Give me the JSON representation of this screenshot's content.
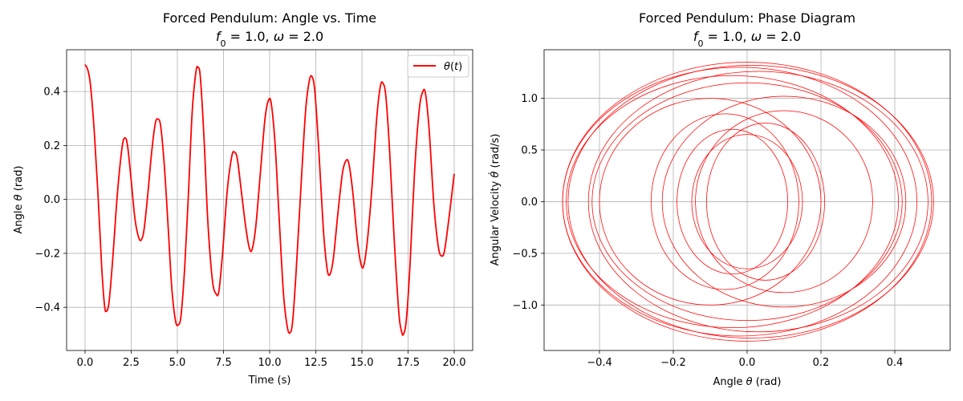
{
  "figure": {
    "background": "#ffffff",
    "line_color": "#ff0000",
    "grid_color": "#b0b0b0"
  },
  "chart_data": [
    {
      "type": "line",
      "title": "Forced Pendulum: Angle vs. Time",
      "subtitle_parts": [
        "f",
        "0",
        " = 1.0, ",
        "ω",
        " = 2.0"
      ],
      "xlabel": "Time (s)",
      "ylabel_parts": [
        "Angle ",
        "θ",
        " (rad)"
      ],
      "xlim": [
        -1.0,
        21.0
      ],
      "ylim": [
        -0.56,
        0.555
      ],
      "xticks": [
        0.0,
        2.5,
        5.0,
        7.5,
        10.0,
        12.5,
        15.0,
        17.5,
        20.0
      ],
      "xtick_labels": [
        "0.0",
        "2.5",
        "5.0",
        "7.5",
        "10.0",
        "12.5",
        "15.0",
        "17.5",
        "20.0"
      ],
      "yticks": [
        -0.4,
        -0.2,
        0.0,
        0.2,
        0.4
      ],
      "ytick_labels": [
        "−0.4",
        "−0.2",
        "0.0",
        "0.2",
        "0.4"
      ],
      "grid": true,
      "legend": {
        "placement": "top-right",
        "entries": [
          {
            "label_parts": [
              "θ",
              "(",
              "t",
              ")"
            ],
            "color": "#ff0000"
          }
        ]
      },
      "series": [
        {
          "name": "θ(t)",
          "color": "#ff0000",
          "points": [
            [
              0.0,
              0.5
            ],
            [
              0.15,
              0.48
            ],
            [
              0.3,
              0.42
            ],
            [
              0.5,
              0.25
            ],
            [
              0.7,
              0.02
            ],
            [
              0.9,
              -0.25
            ],
            [
              1.05,
              -0.39
            ],
            [
              1.15,
              -0.415
            ],
            [
              1.3,
              -0.38
            ],
            [
              1.5,
              -0.22
            ],
            [
              1.75,
              0.02
            ],
            [
              2.0,
              0.19
            ],
            [
              2.15,
              0.228
            ],
            [
              2.3,
              0.2
            ],
            [
              2.5,
              0.07
            ],
            [
              2.7,
              -0.07
            ],
            [
              2.9,
              -0.14
            ],
            [
              3.05,
              -0.15
            ],
            [
              3.2,
              -0.11
            ],
            [
              3.4,
              0.02
            ],
            [
              3.6,
              0.17
            ],
            [
              3.8,
              0.28
            ],
            [
              3.95,
              0.298
            ],
            [
              4.1,
              0.27
            ],
            [
              4.3,
              0.12
            ],
            [
              4.5,
              -0.1
            ],
            [
              4.7,
              -0.33
            ],
            [
              4.9,
              -0.45
            ],
            [
              5.05,
              -0.465
            ],
            [
              5.2,
              -0.43
            ],
            [
              5.4,
              -0.25
            ],
            [
              5.6,
              0.02
            ],
            [
              5.8,
              0.32
            ],
            [
              6.0,
              0.47
            ],
            [
              6.12,
              0.49
            ],
            [
              6.25,
              0.45
            ],
            [
              6.45,
              0.22
            ],
            [
              6.65,
              -0.08
            ],
            [
              6.9,
              -0.3
            ],
            [
              7.1,
              -0.35
            ],
            [
              7.25,
              -0.34
            ],
            [
              7.45,
              -0.2
            ],
            [
              7.7,
              0.03
            ],
            [
              7.95,
              0.16
            ],
            [
              8.1,
              0.175
            ],
            [
              8.25,
              0.15
            ],
            [
              8.45,
              0.04
            ],
            [
              8.7,
              -0.1
            ],
            [
              8.9,
              -0.18
            ],
            [
              9.05,
              -0.185
            ],
            [
              9.25,
              -0.1
            ],
            [
              9.5,
              0.1
            ],
            [
              9.75,
              0.3
            ],
            [
              9.95,
              0.37
            ],
            [
              10.1,
              0.35
            ],
            [
              10.3,
              0.2
            ],
            [
              10.5,
              -0.05
            ],
            [
              10.75,
              -0.35
            ],
            [
              10.95,
              -0.47
            ],
            [
              11.1,
              -0.495
            ],
            [
              11.25,
              -0.45
            ],
            [
              11.45,
              -0.25
            ],
            [
              11.7,
              0.05
            ],
            [
              11.95,
              0.33
            ],
            [
              12.15,
              0.44
            ],
            [
              12.3,
              0.455
            ],
            [
              12.45,
              0.4
            ],
            [
              12.65,
              0.2
            ],
            [
              12.9,
              -0.1
            ],
            [
              13.1,
              -0.25
            ],
            [
              13.25,
              -0.28
            ],
            [
              13.45,
              -0.22
            ],
            [
              13.7,
              -0.05
            ],
            [
              13.95,
              0.1
            ],
            [
              14.15,
              0.145
            ],
            [
              14.3,
              0.13
            ],
            [
              14.5,
              0.03
            ],
            [
              14.75,
              -0.15
            ],
            [
              14.95,
              -0.24
            ],
            [
              15.1,
              -0.245
            ],
            [
              15.3,
              -0.15
            ],
            [
              15.55,
              0.05
            ],
            [
              15.8,
              0.3
            ],
            [
              16.0,
              0.42
            ],
            [
              16.15,
              0.43
            ],
            [
              16.3,
              0.38
            ],
            [
              16.5,
              0.18
            ],
            [
              16.75,
              -0.15
            ],
            [
              17.0,
              -0.42
            ],
            [
              17.15,
              -0.49
            ],
            [
              17.25,
              -0.5
            ],
            [
              17.4,
              -0.45
            ],
            [
              17.6,
              -0.25
            ],
            [
              17.85,
              0.1
            ],
            [
              18.1,
              0.33
            ],
            [
              18.3,
              0.4
            ],
            [
              18.45,
              0.39
            ],
            [
              18.65,
              0.25
            ],
            [
              18.9,
              -0.02
            ],
            [
              19.15,
              -0.18
            ],
            [
              19.35,
              -0.21
            ],
            [
              19.5,
              -0.18
            ],
            [
              19.75,
              -0.05
            ],
            [
              20.0,
              0.095
            ]
          ]
        }
      ]
    },
    {
      "type": "line",
      "title": "Forced Pendulum: Phase Diagram",
      "subtitle_parts": [
        "f",
        "0",
        " = 1.0, ",
        "ω",
        " = 2.0"
      ],
      "xlabel_parts": [
        "Angle ",
        "θ",
        " (rad)"
      ],
      "ylabel_parts": [
        "Angular Velocity ",
        "θ̇",
        " (rad/s)"
      ],
      "xlim": [
        -0.55,
        0.55
      ],
      "ylim": [
        -1.44,
        1.47
      ],
      "xticks": [
        -0.4,
        -0.2,
        0.0,
        0.2,
        0.4
      ],
      "xtick_labels": [
        "−0.4",
        "−0.2",
        "0.0",
        "0.2",
        "0.4"
      ],
      "yticks": [
        -1.0,
        -0.5,
        0.0,
        0.5,
        1.0
      ],
      "ytick_labels": [
        "−1.0",
        "−0.5",
        "0.0",
        "0.5",
        "1.0"
      ],
      "grid": true,
      "series": [
        {
          "color": "#ff0000",
          "loops": [
            {
              "cx": 0.0,
              "cy": 0.0,
              "rx": 0.5,
              "ry": 1.35
            },
            {
              "cx": 0.01,
              "cy": 0.0,
              "rx": 0.495,
              "ry": 1.32
            },
            {
              "cx": -0.02,
              "cy": 0.0,
              "rx": 0.48,
              "ry": 1.3
            },
            {
              "cx": 0.03,
              "cy": 0.0,
              "rx": 0.46,
              "ry": 1.26
            },
            {
              "cx": -0.04,
              "cy": 0.0,
              "rx": 0.45,
              "ry": 1.22
            },
            {
              "cx": 0.0,
              "cy": 0.0,
              "rx": 0.42,
              "ry": 1.15
            },
            {
              "cx": 0.1,
              "cy": 0.0,
              "rx": 0.33,
              "ry": 1.02
            },
            {
              "cx": -0.1,
              "cy": 0.0,
              "rx": 0.3,
              "ry": 1.0
            },
            {
              "cx": 0.1,
              "cy": 0.0,
              "rx": 0.24,
              "ry": 0.88
            },
            {
              "cx": -0.06,
              "cy": 0.0,
              "rx": 0.2,
              "ry": 0.85
            },
            {
              "cx": 0.05,
              "cy": 0.0,
              "rx": 0.16,
              "ry": 0.76
            },
            {
              "cx": -0.04,
              "cy": 0.0,
              "rx": 0.15,
              "ry": 0.7
            },
            {
              "cx": 0.0,
              "cy": 0.0,
              "rx": 0.15,
              "ry": 0.65
            }
          ]
        }
      ]
    }
  ]
}
